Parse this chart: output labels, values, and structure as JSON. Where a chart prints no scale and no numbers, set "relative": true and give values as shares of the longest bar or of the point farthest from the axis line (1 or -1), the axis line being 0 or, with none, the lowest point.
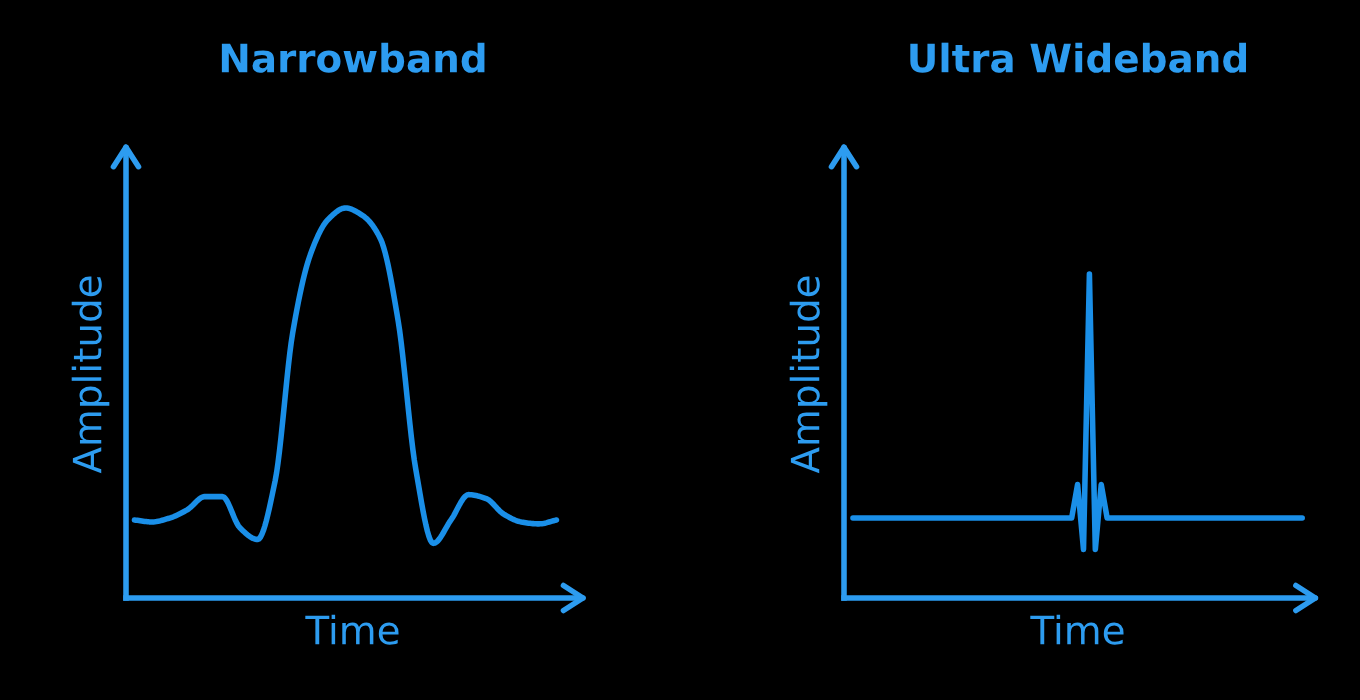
{
  "chart_data": [
    {
      "type": "line",
      "title": "Narrowband",
      "xlabel": "Time",
      "ylabel": "Amplitude",
      "relative": true,
      "tick_labels": false,
      "grid": false,
      "categories": [
        null,
        null,
        null,
        null,
        null,
        null,
        null,
        null,
        null,
        null,
        null,
        null,
        null,
        null,
        null,
        null,
        null,
        null,
        null,
        null,
        null,
        null,
        null,
        null,
        null
      ],
      "series": [
        {
          "color": "#1a8fe8",
          "values": [
            0.2,
            0.195,
            0.205,
            0.226,
            0.26,
            0.26,
            0.18,
            0.15,
            0.3,
            0.68,
            0.88,
            0.97,
            1.0,
            0.98,
            0.92,
            0.71,
            0.33,
            0.14,
            0.2,
            0.265,
            0.255,
            0.215,
            0.195,
            0.19,
            0.2
          ]
        }
      ]
    },
    {
      "type": "line",
      "title": "Ultra Wideband",
      "xlabel": "Time",
      "ylabel": "Amplitude",
      "relative": true,
      "tick_labels": false,
      "grid": false,
      "categories": [
        null,
        null,
        null,
        null,
        null,
        null,
        null,
        null,
        null,
        null,
        null,
        null,
        null,
        null,
        null,
        null,
        null,
        null,
        null,
        null,
        null,
        null,
        null,
        null,
        null,
        null,
        null,
        null,
        null,
        null,
        null,
        null,
        null,
        null,
        null,
        null,
        null,
        null,
        null,
        null,
        null,
        null,
        null,
        null,
        null,
        null,
        null,
        null,
        null,
        null,
        null,
        null,
        null,
        null,
        null,
        null,
        null,
        null,
        null,
        null,
        null,
        null,
        null,
        null,
        null,
        null,
        null,
        null,
        null,
        null,
        null,
        null,
        null,
        null,
        null,
        null,
        null
      ],
      "series": [
        {
          "color": "#1a8fe8",
          "values": [
            0.247,
            0.247,
            0.247,
            0.247,
            0.247,
            0.247,
            0.247,
            0.247,
            0.247,
            0.247,
            0.247,
            0.247,
            0.247,
            0.247,
            0.247,
            0.247,
            0.247,
            0.247,
            0.247,
            0.247,
            0.247,
            0.247,
            0.247,
            0.247,
            0.247,
            0.247,
            0.247,
            0.247,
            0.247,
            0.247,
            0.247,
            0.247,
            0.247,
            0.247,
            0.247,
            0.247,
            0.247,
            0.247,
            0.35,
            0.15,
            1.0,
            0.15,
            0.35,
            0.247,
            0.247,
            0.247,
            0.247,
            0.247,
            0.247,
            0.247,
            0.247,
            0.247,
            0.247,
            0.247,
            0.247,
            0.247,
            0.247,
            0.247,
            0.247,
            0.247,
            0.247,
            0.247,
            0.247,
            0.247,
            0.247,
            0.247,
            0.247,
            0.247,
            0.247,
            0.247,
            0.247,
            0.247,
            0.247,
            0.247,
            0.247,
            0.247,
            0.247
          ]
        }
      ]
    }
  ]
}
